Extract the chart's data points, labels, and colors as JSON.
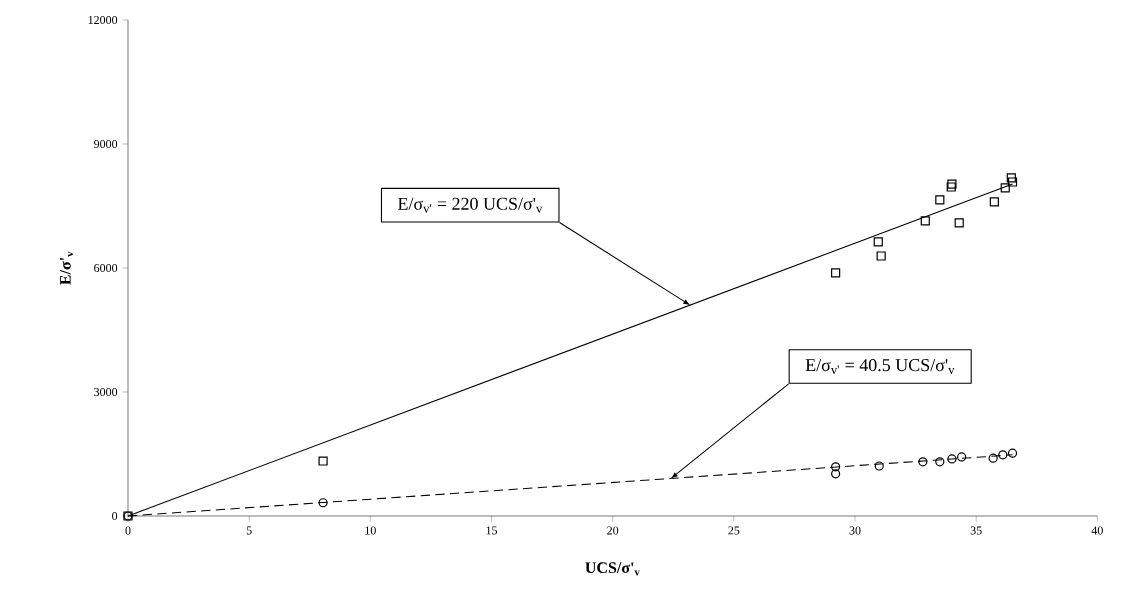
{
  "chart_data": {
    "type": "scatter",
    "xlabel": "**UCS/σ'$_{v}$**",
    "ylabel": "**E/σ'$_{v}$**",
    "xlim": [
      0,
      40
    ],
    "xticks": [
      0,
      5,
      10,
      15,
      20,
      25,
      30,
      35,
      40
    ],
    "ylim": [
      0,
      12000
    ],
    "yticks": [
      0,
      3000,
      6000,
      9000,
      12000
    ],
    "series": [
      {
        "marker": "square",
        "color": "#000000",
        "x": [
          0,
          8.05,
          29.2,
          30.96,
          31.08,
          32.9,
          33.5,
          33.97,
          34.0,
          34.3,
          35.75,
          36.2,
          36.5,
          36.45
        ],
        "values": [
          0,
          1330,
          5880,
          6630,
          6290,
          7140,
          7650,
          7960,
          8030,
          7090,
          7600,
          7940,
          8080,
          8180
        ]
      },
      {
        "marker": "circle",
        "color": "#000000",
        "x": [
          0,
          8.05,
          29.2,
          29.2,
          31.0,
          32.8,
          33.5,
          34.0,
          34.4,
          35.7,
          36.1,
          36.5
        ],
        "values": [
          0,
          320,
          1190,
          1020,
          1210,
          1310,
          1310,
          1380,
          1430,
          1400,
          1480,
          1520
        ]
      },
      {
        "type": "line",
        "marker": "none",
        "line_style": "solid",
        "color": "#000000",
        "x": [
          0,
          36.5
        ],
        "values": [
          0,
          8030
        ]
      },
      {
        "type": "line",
        "marker": "none",
        "line_style": "dashed",
        "color": "#000000",
        "x": [
          0,
          36.5
        ],
        "values": [
          0,
          1480
        ]
      }
    ],
    "annotations": [
      {
        "text": "E/σ$_{v'}$ = 220 UCS/σ'$_{v}$",
        "x": 23.2,
        "y": 5100
      },
      {
        "text": "E/σ$_{v'}$ = 40.5 UCS/σ'$_{v}$",
        "x": 22.4,
        "y": 907
      }
    ]
  }
}
